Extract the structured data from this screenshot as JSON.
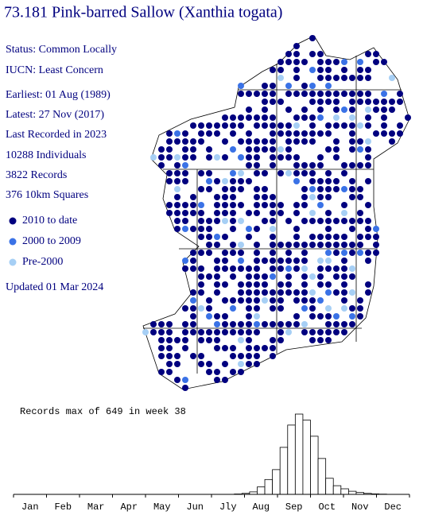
{
  "header": {
    "title": "73.181 Pink-barred Sallow (Xanthia togata)"
  },
  "info": [
    "Status: Common Locally",
    "IUCN: Least Concern",
    "Earliest: 01 Aug (1989)",
    "Latest: 27 Nov (2017)",
    "Last Recorded in 2023",
    "10288 Individuals",
    "3822 Records",
    "376 10km Squares"
  ],
  "legend": [
    {
      "label": "2010 to date",
      "color": "#00007f"
    },
    {
      "label": "2000 to 2009",
      "color": "#3a72e6"
    },
    {
      "label": "Pre-2000",
      "color": "#a6cff5"
    }
  ],
  "updated": "Updated 01 Mar 2024",
  "chart_data": {
    "type": "bar",
    "title": "Records max of 649 in week 38",
    "color": "#ffffff",
    "x": [
      1,
      2,
      3,
      4,
      5,
      6,
      7,
      8,
      9,
      10,
      11,
      12,
      13,
      14,
      15,
      16,
      17,
      18,
      19,
      20,
      21,
      22,
      23,
      24,
      25,
      26,
      27,
      28,
      29,
      30,
      31,
      32,
      33,
      34,
      35,
      36,
      37,
      38,
      39,
      40,
      41,
      42,
      43,
      44,
      45,
      46,
      47,
      48,
      49,
      50,
      51,
      52
    ],
    "values": [
      0,
      0,
      0,
      0,
      0,
      0,
      0,
      0,
      0,
      0,
      0,
      0,
      0,
      0,
      0,
      0,
      0,
      0,
      0,
      0,
      0,
      0,
      0,
      0,
      0,
      0,
      0,
      0,
      0,
      3,
      8,
      20,
      60,
      120,
      200,
      380,
      560,
      649,
      600,
      470,
      290,
      130,
      70,
      45,
      25,
      15,
      8,
      4,
      2,
      0,
      0,
      0
    ],
    "xlim": [
      0,
      52
    ],
    "ylim": [
      0,
      649
    ],
    "xticks": [
      {
        "value": 2.17,
        "label": "Jan"
      },
      {
        "value": 6.5,
        "label": "Feb"
      },
      {
        "value": 10.83,
        "label": "Mar"
      },
      {
        "value": 15.17,
        "label": "Apr"
      },
      {
        "value": 19.5,
        "label": "May"
      },
      {
        "value": 23.83,
        "label": "Jun"
      },
      {
        "value": 28.17,
        "label": "Jly"
      },
      {
        "value": 32.5,
        "label": "Aug"
      },
      {
        "value": 36.83,
        "label": "Sep"
      },
      {
        "value": 41.17,
        "label": "Oct"
      },
      {
        "value": 45.5,
        "label": "Nov"
      },
      {
        "value": 49.83,
        "label": "Dec"
      }
    ]
  }
}
